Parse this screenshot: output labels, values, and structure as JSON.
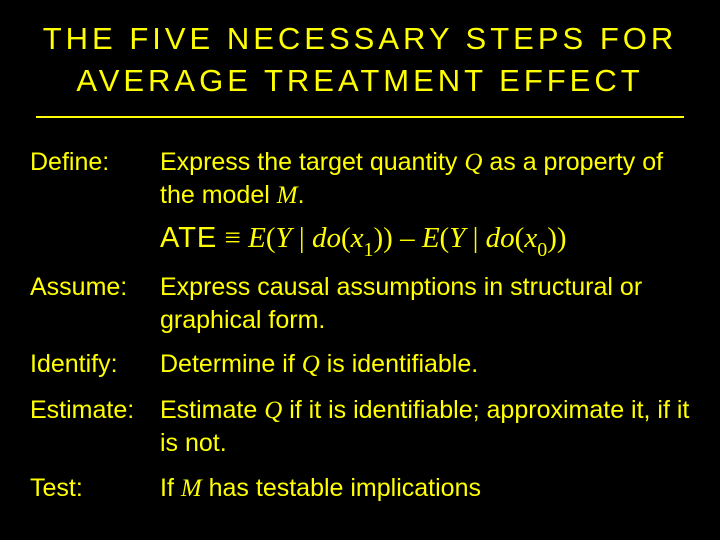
{
  "colors": {
    "background": "#000000",
    "text": "#ffff00",
    "rule": "#ffff00"
  },
  "title": "THE FIVE NECESSARY STEPS FOR AVERAGE TREATMENT EFFECT",
  "steps": {
    "define": {
      "label": "Define:",
      "text_before": "Express the target quantity ",
      "q": "Q",
      "text_mid": " as a property of the model ",
      "m": "M",
      "text_after": "."
    },
    "formula": {
      "ate": "ATE",
      "equiv": " ≡ ",
      "lhs_E": "E",
      "lhs_open": "(",
      "lhs_Y": "Y",
      "lhs_bar": " | ",
      "lhs_do": "do",
      "lhs_x": "x",
      "lhs_sub": "1",
      "lhs_close": "))",
      "minus": " – ",
      "rhs_E": "E",
      "rhs_open": "(",
      "rhs_Y": "Y",
      "rhs_bar": " | ",
      "rhs_do": "do",
      "rhs_x": "x",
      "rhs_sub": "0",
      "rhs_close": "))"
    },
    "assume": {
      "label": "Assume:",
      "text": "Express causal assumptions in structural or graphical form."
    },
    "identify": {
      "label": "Identify:",
      "text_before": "Determine if ",
      "q": "Q",
      "text_after": " is identifiable."
    },
    "estimate": {
      "label": "Estimate:",
      "text_before": "Estimate ",
      "q": "Q",
      "text_after": " if it is identifiable; approximate it, if it is not."
    },
    "test": {
      "label": "Test:",
      "text_before": "If ",
      "m": "M",
      "text_after": " has testable implications"
    }
  }
}
